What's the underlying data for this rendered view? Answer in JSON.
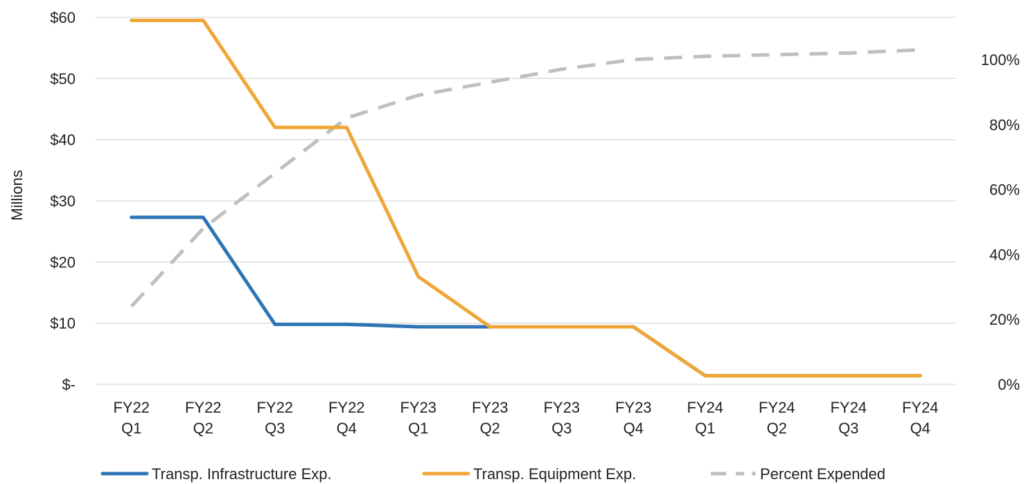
{
  "chart_data": {
    "type": "line",
    "categories": [
      [
        "FY22",
        "Q1"
      ],
      [
        "FY22",
        "Q2"
      ],
      [
        "FY22",
        "Q3"
      ],
      [
        "FY22",
        "Q4"
      ],
      [
        "FY23",
        "Q1"
      ],
      [
        "FY23",
        "Q2"
      ],
      [
        "FY23",
        "Q3"
      ],
      [
        "FY23",
        "Q4"
      ],
      [
        "FY24",
        "Q1"
      ],
      [
        "FY24",
        "Q2"
      ],
      [
        "FY24",
        "Q3"
      ],
      [
        "FY24",
        "Q4"
      ]
    ],
    "ylabel": "Millions",
    "ylim": [
      0,
      60
    ],
    "y_ticks": [
      {
        "value": 0,
        "label": "$-"
      },
      {
        "value": 10,
        "label": "$10"
      },
      {
        "value": 20,
        "label": "$20"
      },
      {
        "value": 30,
        "label": "$30"
      },
      {
        "value": 40,
        "label": "$40"
      },
      {
        "value": 50,
        "label": "$50"
      },
      {
        "value": 60,
        "label": "$60"
      }
    ],
    "y2lim": [
      0,
      1.13
    ],
    "y2_ticks": [
      {
        "value": 0,
        "label": "0%"
      },
      {
        "value": 0.2,
        "label": "20%"
      },
      {
        "value": 0.4,
        "label": "40%"
      },
      {
        "value": 0.6,
        "label": "60%"
      },
      {
        "value": 0.8,
        "label": "80%"
      },
      {
        "value": 1.0,
        "label": "100%"
      }
    ],
    "grid": true,
    "legend_position": "bottom",
    "series": [
      {
        "name": "Transp. Infrastructure Exp.",
        "axis": "left",
        "color": "#2E75B6",
        "style": "solid",
        "values": [
          27.3,
          27.3,
          9.8,
          9.8,
          9.4,
          9.4,
          9.4,
          9.4,
          1.4,
          1.4,
          1.4,
          1.4
        ]
      },
      {
        "name": "Transp. Equipment Exp.",
        "axis": "left",
        "color": "#F0A637",
        "style": "solid",
        "values": [
          59.5,
          59.5,
          42.0,
          42.0,
          17.6,
          9.4,
          9.4,
          9.4,
          1.4,
          1.4,
          1.4,
          1.4
        ]
      },
      {
        "name": "Percent Expended",
        "axis": "right",
        "color": "#BFBFBF",
        "style": "dashed",
        "values": [
          0.24,
          0.48,
          0.65,
          0.82,
          0.89,
          0.93,
          0.97,
          1.0,
          1.01,
          1.015,
          1.02,
          1.03
        ]
      }
    ]
  }
}
